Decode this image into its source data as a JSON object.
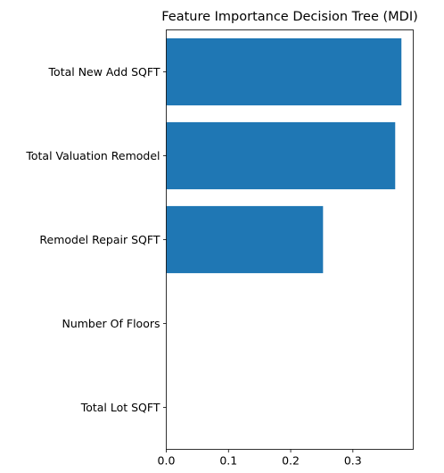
{
  "chart_data": {
    "type": "bar",
    "orientation": "horizontal",
    "title": "Feature Importance Decision Tree (MDI)",
    "xlabel": "",
    "ylabel": "",
    "categories": [
      "Total New Add SQFT",
      "Total Valuation Remodel",
      "Remodel Repair SQFT",
      "Number Of Floors",
      "Total Lot SQFT"
    ],
    "values": [
      0.378,
      0.368,
      0.252,
      0.0,
      0.0
    ],
    "xlim": [
      0,
      0.397
    ],
    "xticks": [
      0.0,
      0.1,
      0.2,
      0.3
    ],
    "xtick_labels": [
      "0.0",
      "0.1",
      "0.2",
      "0.3"
    ],
    "bar_color": "#1f77b4",
    "grid": false,
    "legend": "none"
  }
}
